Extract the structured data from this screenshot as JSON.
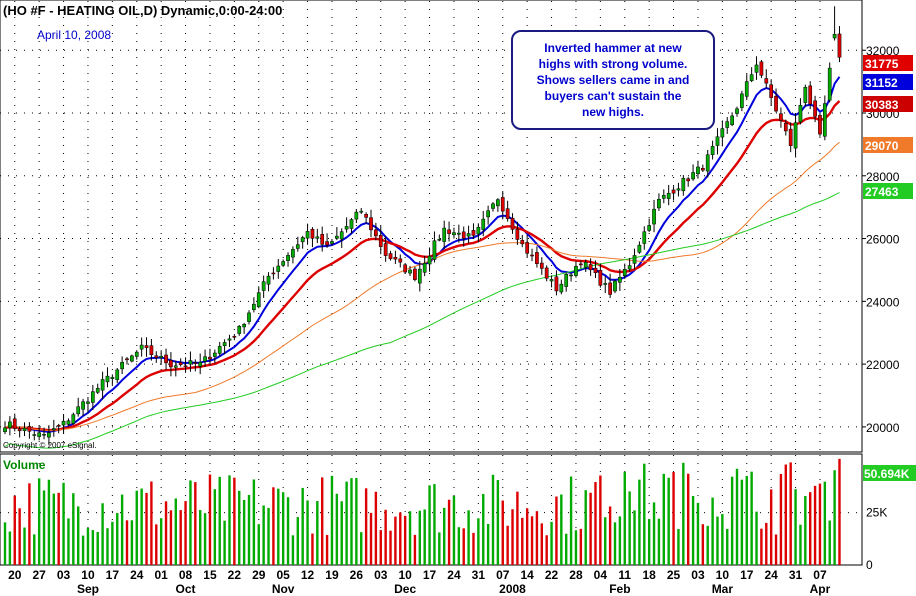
{
  "header": {
    "symbol_title": "(HO #F - HEATING OIL,D) Dynamic,0:00-24:00",
    "date_label": "April 10, 2008",
    "copyright": "Copyright © 2007 eSignal."
  },
  "annotation": {
    "lines": [
      "Inverted hammer at new",
      "highs with strong volume.",
      "Shows sellers came in and",
      "buyers can't sustain the",
      "new highs."
    ]
  },
  "price_axis": {
    "ticks": [
      20000,
      22000,
      24000,
      26000,
      28000,
      30000,
      32000
    ],
    "tick_labels": [
      "20000",
      "22000",
      "24000",
      "26000",
      "28000",
      "30000",
      "32000"
    ],
    "ylim": [
      19200,
      33600
    ]
  },
  "price_tags": [
    {
      "value": 31775,
      "label": "31775",
      "color": "#e00000"
    },
    {
      "value": 31152,
      "label": "31152",
      "color": "#0000dd"
    },
    {
      "value": 30383,
      "label": "30383",
      "color": "#cc0000"
    },
    {
      "value": 29070,
      "label": "29070",
      "color": "#f07a2a"
    },
    {
      "value": 27463,
      "label": "27463",
      "color": "#22cc22"
    }
  ],
  "volume_panel": {
    "title": "Volume",
    "last_label": "50.694K",
    "ticks": [
      0,
      25000
    ],
    "tick_labels": [
      "0",
      "25K"
    ],
    "ylim": [
      0,
      53000
    ]
  },
  "x_axis": {
    "day_labels": [
      "20",
      "27",
      "03",
      "10",
      "17",
      "24",
      "01",
      "08",
      "15",
      "22",
      "29",
      "05",
      "12",
      "19",
      "26",
      "03",
      "10",
      "17",
      "24",
      "31",
      "07",
      "14",
      "22",
      "28",
      "04",
      "11",
      "18",
      "25",
      "03",
      "10",
      "17",
      "24",
      "31",
      "07"
    ],
    "day_label_bar_index": [
      2,
      7,
      12,
      17,
      22,
      27,
      32,
      37,
      42,
      47,
      52,
      57,
      62,
      67,
      72,
      77,
      82,
      87,
      92,
      97,
      102,
      107,
      112,
      117,
      122,
      127,
      132,
      137,
      142,
      147,
      152,
      157,
      162,
      167
    ],
    "month_labels": [
      {
        "label": "Sep",
        "bar_index": 17
      },
      {
        "label": "Oct",
        "bar_index": 37
      },
      {
        "label": "Nov",
        "bar_index": 57
      },
      {
        "label": "Dec",
        "bar_index": 82
      },
      {
        "label": "2008",
        "bar_index": 104
      },
      {
        "label": "Feb",
        "bar_index": 126
      },
      {
        "label": "Mar",
        "bar_index": 147
      },
      {
        "label": "Apr",
        "bar_index": 167
      }
    ]
  },
  "colors": {
    "up_candle": "#00aa00",
    "down_candle": "#dd0000",
    "ma_fast": "#0000dd",
    "ma_medium": "#dd0000",
    "ma_slow": "#f07a2a",
    "ma_long": "#22cc22",
    "annotation_text": "#0000cc",
    "date_text": "#0000cc"
  },
  "chart_data": {
    "type": "candlestick",
    "bar_count": 172,
    "anchors": [
      {
        "i": 0,
        "close": 20100
      },
      {
        "i": 8,
        "close": 19700
      },
      {
        "i": 12,
        "close": 20100
      },
      {
        "i": 20,
        "close": 21400
      },
      {
        "i": 28,
        "close": 22500
      },
      {
        "i": 34,
        "close": 22000
      },
      {
        "i": 40,
        "close": 22000
      },
      {
        "i": 48,
        "close": 23100
      },
      {
        "i": 54,
        "close": 24800
      },
      {
        "i": 62,
        "close": 26200
      },
      {
        "i": 66,
        "close": 25700
      },
      {
        "i": 73,
        "close": 26900
      },
      {
        "i": 78,
        "close": 25500
      },
      {
        "i": 84,
        "close": 24800
      },
      {
        "i": 90,
        "close": 26300
      },
      {
        "i": 96,
        "close": 26000
      },
      {
        "i": 101,
        "close": 27300
      },
      {
        "i": 106,
        "close": 25800
      },
      {
        "i": 113,
        "close": 24400
      },
      {
        "i": 118,
        "close": 25300
      },
      {
        "i": 124,
        "close": 24300
      },
      {
        "i": 128,
        "close": 25200
      },
      {
        "i": 134,
        "close": 27200
      },
      {
        "i": 143,
        "close": 28300
      },
      {
        "i": 150,
        "close": 30200
      },
      {
        "i": 154,
        "close": 31600
      },
      {
        "i": 158,
        "close": 30100
      },
      {
        "i": 161,
        "close": 29000
      },
      {
        "i": 164,
        "close": 30900
      },
      {
        "i": 167,
        "close": 29200
      },
      {
        "i": 170,
        "close": 32400
      },
      {
        "i": 171,
        "close": 31775
      }
    ],
    "moving_averages": [
      {
        "key": "ma_fast",
        "last": 31152
      },
      {
        "key": "ma_medium",
        "last": 30383
      },
      {
        "key": "ma_slow",
        "last": 29070
      },
      {
        "key": "ma_long",
        "last": 27463
      }
    ],
    "volume_last": 50694,
    "xlabel": "",
    "ylabel": ""
  }
}
